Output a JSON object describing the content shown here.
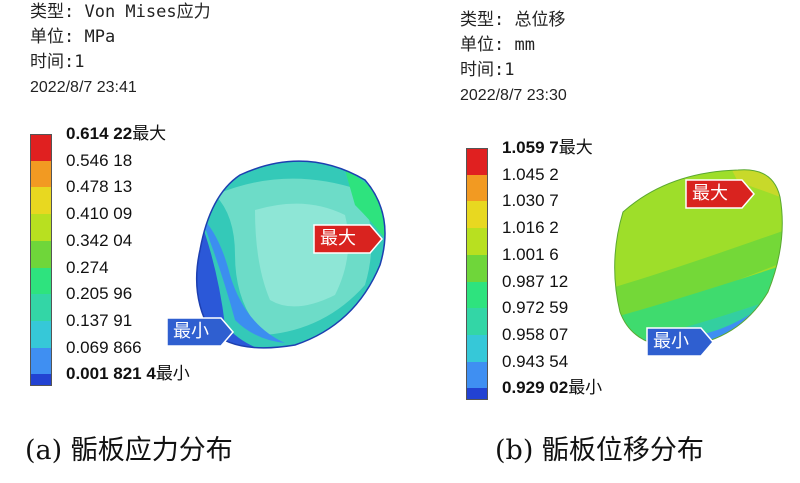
{
  "chart_data": [
    {
      "type": "heatmap",
      "header": {
        "type_line": "类型: Von Mises应力",
        "unit_line": "单位: MPa",
        "time_line": "时间:1",
        "date_line": "2022/8/7 23:41"
      },
      "legend": {
        "levels": [
          "0.614 22",
          "0.546 18",
          "0.478 13",
          "0.410 09",
          "0.342 04",
          "0.274",
          "0.205 96",
          "0.137 91",
          "0.069 866",
          "0.001 821 4"
        ],
        "max_suffix": "最大",
        "min_suffix": "最小",
        "colors": [
          "#e02020",
          "#f29a22",
          "#e8d820",
          "#b8e020",
          "#6fd63a",
          "#2ee37e",
          "#33d6a6",
          "#36c8d8",
          "#3f8ff2",
          "#2242d2"
        ]
      },
      "markers": {
        "max_label": "最大",
        "min_label": "最小"
      },
      "caption": "(a) 骺板应力分布"
    },
    {
      "type": "heatmap",
      "header": {
        "type_line": "类型: 总位移",
        "unit_line": "单位: mm",
        "time_line": "时间:1",
        "date_line": "2022/8/7 23:30"
      },
      "legend": {
        "levels": [
          "1.059 7",
          "1.045 2",
          "1.030 7",
          "1.016 2",
          "1.001 6",
          "0.987 12",
          "0.972 59",
          "0.958 07",
          "0.943 54",
          "0.929 02"
        ],
        "max_suffix": "最大",
        "min_suffix": "最小",
        "colors": [
          "#e02020",
          "#f29a22",
          "#e8d820",
          "#b8e020",
          "#6fd63a",
          "#2ee37e",
          "#33d6a6",
          "#36c8d8",
          "#3f8ff2",
          "#2242d2"
        ]
      },
      "markers": {
        "max_label": "最大",
        "min_label": "最小"
      },
      "caption": "(b) 骺板位移分布"
    }
  ],
  "colors": {
    "marker_red": "#d9231f",
    "marker_blue": "#2f5fd0"
  }
}
